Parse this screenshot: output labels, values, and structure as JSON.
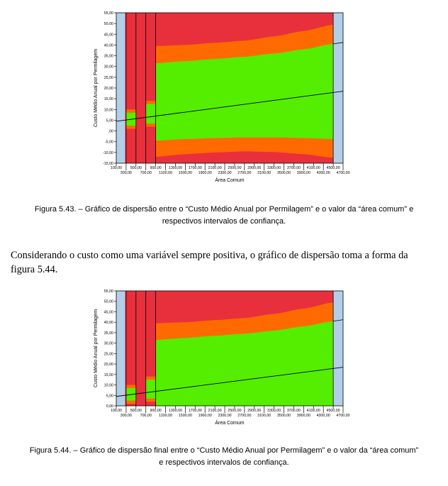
{
  "figures": [
    {
      "caption_line1": "Figura 5.43. – Gráfico de dispersão entre o “Custo Médio Anual por Permilagem” e o valor da “área comum” e",
      "caption_line2": "respectivos intervalos de confiança."
    },
    {
      "caption_line1": "Figura 5.44. – Gráfico de dispersão final entre o “Custo Médio Anual por Permilagem” e o valor da “área comum”",
      "caption_line2": "e respectivos intervalos de confiança."
    }
  ],
  "paragraph": {
    "line1": "Considerando o custo como uma variável sempre positiva, o gráfico de dispersão toma a forma da",
    "line2": "figura 5.44."
  },
  "colors": {
    "red": "#e8303c",
    "orange": "#ff6a00",
    "green": "#55ee00",
    "blue": "#b3cfe8",
    "axis": "#000000"
  },
  "chart_data": [
    {
      "type": "area",
      "xlabel": "Área Comum",
      "ylabel": "Custo Médio Anual por Permilagem",
      "xlim": [
        100,
        4700
      ],
      "ylim": [
        -15,
        55
      ],
      "yticks": [
        "55,00",
        "50,00",
        "45,00",
        "40,00",
        "35,00",
        "30,00",
        "25,00",
        "20,00",
        "15,00",
        "10,00",
        "5,00",
        ",00",
        "-5,00",
        "-10,00",
        "-15,00"
      ],
      "yticks_values": [
        55,
        50,
        45,
        40,
        35,
        30,
        25,
        20,
        15,
        10,
        5,
        0,
        -5,
        -10,
        -15
      ],
      "xticks_top": [
        "100,00",
        "500,00",
        "900,00",
        "1300,00",
        "1700,00",
        "2100,00",
        "2500,00",
        "2900,00",
        "3300,00",
        "3700,00",
        "4100,00",
        "4500,00"
      ],
      "xticks_top_values": [
        100,
        500,
        900,
        1300,
        1700,
        2100,
        2500,
        2900,
        3300,
        3700,
        4100,
        4500
      ],
      "xticks_bottom": [
        "300,00",
        "700,00",
        "1100,00",
        "1500,00",
        "1900,00",
        "2300,00",
        "2700,00",
        "3100,00",
        "3500,00",
        "3900,00",
        "4300,00",
        "4700,00"
      ],
      "xticks_bottom_values": [
        300,
        700,
        1100,
        1500,
        1900,
        2300,
        2700,
        3100,
        3500,
        3900,
        4300,
        4700
      ],
      "fit_line": {
        "x": [
          100,
          4700
        ],
        "y": [
          4.5,
          18.5
        ]
      },
      "green_upper": {
        "x": [
          900,
          1500,
          2100,
          2700,
          3300,
          3900,
          4500
        ],
        "y": [
          31.5,
          32.5,
          33.5,
          34.5,
          36,
          38,
          40.5
        ]
      },
      "green_lower": {
        "x": [
          900,
          1500,
          2100,
          2700,
          3300,
          3900,
          4500
        ],
        "y": [
          -4.5,
          -3.8,
          -3.3,
          -3.0,
          -3.0,
          -3.3,
          -3.8
        ]
      },
      "orange_upper": {
        "x": [
          900,
          1500,
          2100,
          2700,
          3300,
          3900,
          4500
        ],
        "y": [
          39.5,
          40,
          41,
          42,
          44,
          46.5,
          49.5
        ]
      },
      "orange_lower": {
        "x": [
          900,
          1500,
          2100,
          2700,
          3300,
          3900,
          4500
        ],
        "y": [
          -12,
          -10.8,
          -10,
          -9.5,
          -9.8,
          -10.8,
          -12.5
        ]
      },
      "min_y": -15
    },
    {
      "type": "area",
      "xlabel": "Área Comum",
      "ylabel": "Custo Médio Anual por Permilagem",
      "xlim": [
        100,
        4700
      ],
      "ylim": [
        0,
        55
      ],
      "yticks": [
        "55,00",
        "50,00",
        "45,00",
        "40,00",
        "35,00",
        "30,00",
        "25,00",
        "20,00",
        "15,00",
        "10,00",
        "5,00",
        "0,00"
      ],
      "yticks_values": [
        55,
        50,
        45,
        40,
        35,
        30,
        25,
        20,
        15,
        10,
        5,
        0
      ],
      "xticks_top": [
        "100,00",
        "500,00",
        "900,00",
        "1300,00",
        "1700,00",
        "2100,00",
        "2500,00",
        "2900,00",
        "3300,00",
        "3700,00",
        "4100,00",
        "4500,00"
      ],
      "xticks_top_values": [
        100,
        500,
        900,
        1300,
        1700,
        2100,
        2500,
        2900,
        3300,
        3700,
        4100,
        4500
      ],
      "xticks_bottom": [
        "300,00",
        "700,00",
        "1100,00",
        "1500,00",
        "1900,00",
        "2300,00",
        "2700,00",
        "3100,00",
        "3500,00",
        "3900,00",
        "4300,00",
        "4700,00"
      ],
      "xticks_bottom_values": [
        300,
        700,
        1100,
        1500,
        1900,
        2300,
        2700,
        3100,
        3500,
        3900,
        4300,
        4700
      ],
      "fit_line": {
        "x": [
          100,
          4700
        ],
        "y": [
          4.5,
          18.5
        ]
      },
      "green_upper": {
        "x": [
          900,
          1500,
          2100,
          2700,
          3300,
          3900,
          4500
        ],
        "y": [
          31.5,
          32.5,
          33.5,
          34.5,
          36,
          38,
          40.5
        ]
      },
      "green_lower": {
        "x": [
          900,
          4500
        ],
        "y": [
          0,
          0
        ]
      },
      "orange_upper": {
        "x": [
          900,
          1500,
          2100,
          2700,
          3300,
          3900,
          4500
        ],
        "y": [
          39.5,
          40,
          41,
          42,
          44,
          46.5,
          49.5
        ]
      },
      "orange_lower": {
        "x": [
          900,
          4500
        ],
        "y": [
          0,
          0
        ]
      },
      "min_y": 0
    }
  ]
}
